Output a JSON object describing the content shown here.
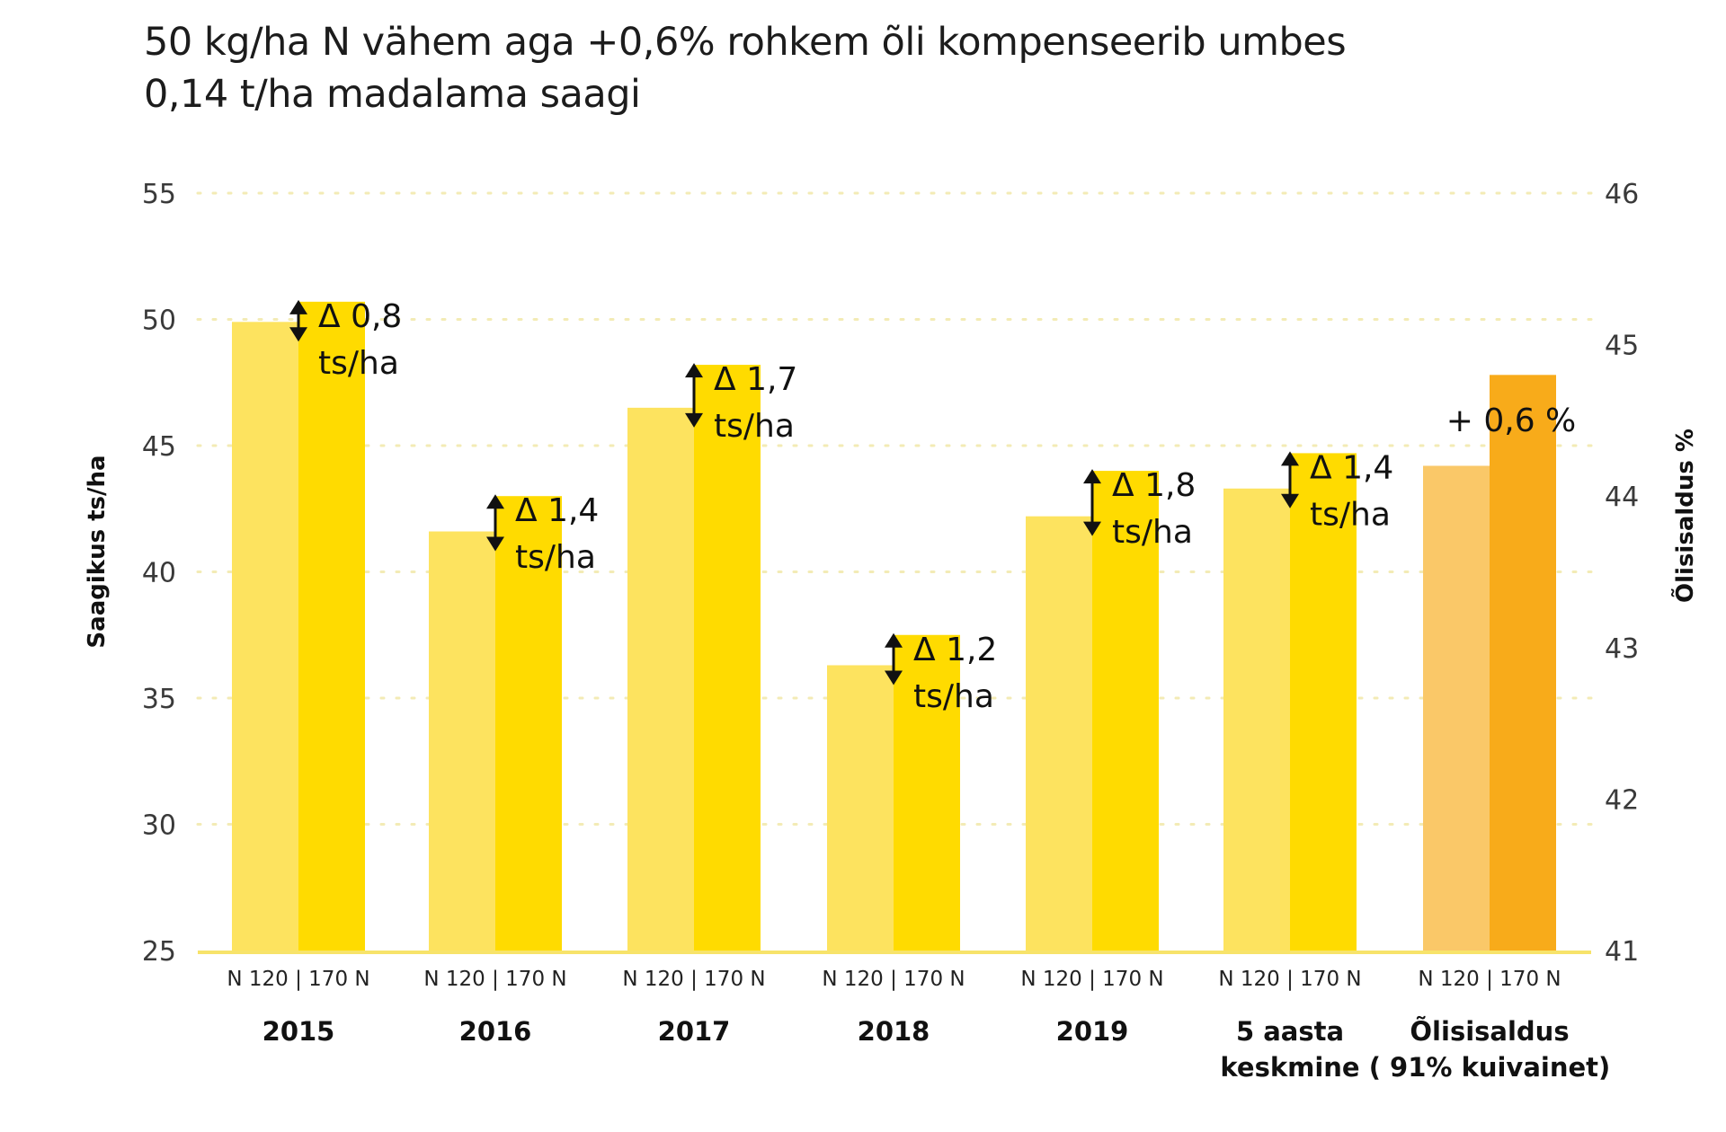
{
  "title_lines": [
    "50 kg/ha N vähem aga +0,6%  rohkem õli kompenseerib umbes",
    "0,14 t/ha madalama saagi"
  ],
  "chart_data": {
    "type": "bar",
    "title": "50 kg/ha N vähem aga +0,6%  rohkem õli kompenseerib umbes 0,14 t/ha madalama saagi",
    "ylabel": "Saagikus ts/ha",
    "ylabel_right": "Õlisisaldus %",
    "ylim": [
      25,
      55
    ],
    "yticks": [
      25,
      30,
      35,
      40,
      45,
      50,
      55
    ],
    "ylim_right": [
      41,
      46
    ],
    "yticks_right": [
      41,
      42,
      43,
      44,
      45,
      46
    ],
    "grid": true,
    "categories": [
      "2015",
      "2016",
      "2017",
      "2018",
      "2019",
      "5 aasta keskmine",
      "Õlisisaldus ( 91% kuivainet)"
    ],
    "category_lines": [
      [
        "2015"
      ],
      [
        "2016"
      ],
      [
        "2017"
      ],
      [
        "2018"
      ],
      [
        "2019"
      ],
      [
        "5 aasta",
        "keskmine"
      ],
      [
        "Õlisisaldus",
        "( 91% kuivainet)"
      ]
    ],
    "sub_label": "N 120 | 170 N",
    "series": [
      {
        "name": "N 120",
        "values": [
          49.9,
          41.6,
          46.5,
          36.3,
          42.2,
          43.3,
          44.2
        ],
        "axis": [
          "left",
          "left",
          "left",
          "left",
          "left",
          "left",
          "right"
        ]
      },
      {
        "name": "170 N",
        "values": [
          50.7,
          43.0,
          48.2,
          37.5,
          44.0,
          44.7,
          44.8
        ],
        "axis": [
          "left",
          "left",
          "left",
          "left",
          "left",
          "left",
          "right"
        ]
      }
    ],
    "annotations": [
      {
        "category": "2015",
        "lines": [
          "Δ 0,8",
          "ts/ha"
        ],
        "arrow": true
      },
      {
        "category": "2016",
        "lines": [
          "Δ 1,4",
          "ts/ha"
        ],
        "arrow": true
      },
      {
        "category": "2017",
        "lines": [
          "Δ 1,7",
          "ts/ha"
        ],
        "arrow": true
      },
      {
        "category": "2018",
        "lines": [
          "Δ 1,2",
          "ts/ha"
        ],
        "arrow": true
      },
      {
        "category": "2019",
        "lines": [
          "Δ 1,8",
          "ts/ha"
        ],
        "arrow": true
      },
      {
        "category": "5 aasta keskmine",
        "lines": [
          "Δ 1,4",
          "ts/ha"
        ],
        "arrow": true
      },
      {
        "category": "Õlisisaldus ( 91% kuivainet)",
        "lines": [
          "+ 0,6 %"
        ],
        "arrow": false
      }
    ],
    "colors": {
      "n120_yield": "#FDE35F",
      "n170_yield": "#FFDB00",
      "n120_oil": "#FAC868",
      "n170_oil": "#F8AB1A",
      "baseline": "#F7E36A",
      "grid": "#F3EBB5"
    }
  }
}
